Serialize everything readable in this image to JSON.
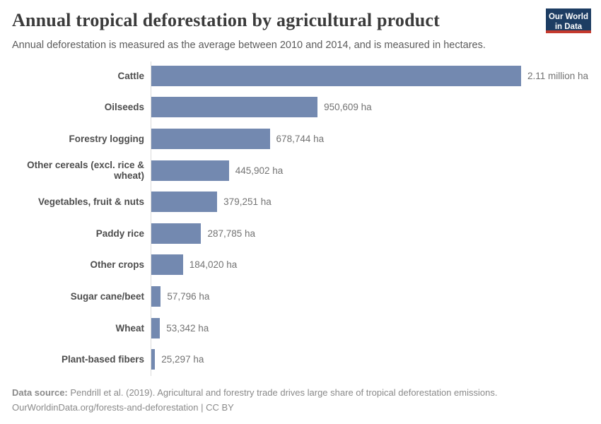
{
  "header": {
    "title": "Annual tropical deforestation by agricultural product",
    "subtitle": "Annual deforestation is measured as the average between 2010 and 2014, and is measured in hectares.",
    "logo": {
      "line1": "Our World",
      "line2": "in Data",
      "bg_color": "#1d3d63",
      "accent_color": "#c5392d"
    }
  },
  "chart_data": {
    "type": "bar",
    "orientation": "horizontal",
    "title": "Annual tropical deforestation by agricultural product",
    "unit": "ha",
    "xlim": [
      0,
      2110000
    ],
    "grid": false,
    "legend": false,
    "bar_color": "#7389b0",
    "categories": [
      "Cattle",
      "Oilseeds",
      "Forestry logging",
      "Other cereals (excl. rice & wheat)",
      "Vegetables, fruit & nuts",
      "Paddy rice",
      "Other crops",
      "Sugar cane/beet",
      "Wheat",
      "Plant-based fibers"
    ],
    "values": [
      2110000,
      950609,
      678744,
      445902,
      379251,
      287785,
      184020,
      57796,
      53342,
      25297
    ],
    "value_labels": [
      "2.11 million ha",
      "950,609 ha",
      "678,744 ha",
      "445,902 ha",
      "379,251 ha",
      "287,785 ha",
      "184,020 ha",
      "57,796 ha",
      "53,342 ha",
      "25,297 ha"
    ]
  },
  "footer": {
    "datasource_label": "Data source:",
    "datasource_text": " Pendrill et al. (2019). Agricultural and forestry trade drives large share of tropical deforestation emissions.",
    "link_text": "OurWorldinData.org/forests-and-deforestation | CC BY"
  }
}
